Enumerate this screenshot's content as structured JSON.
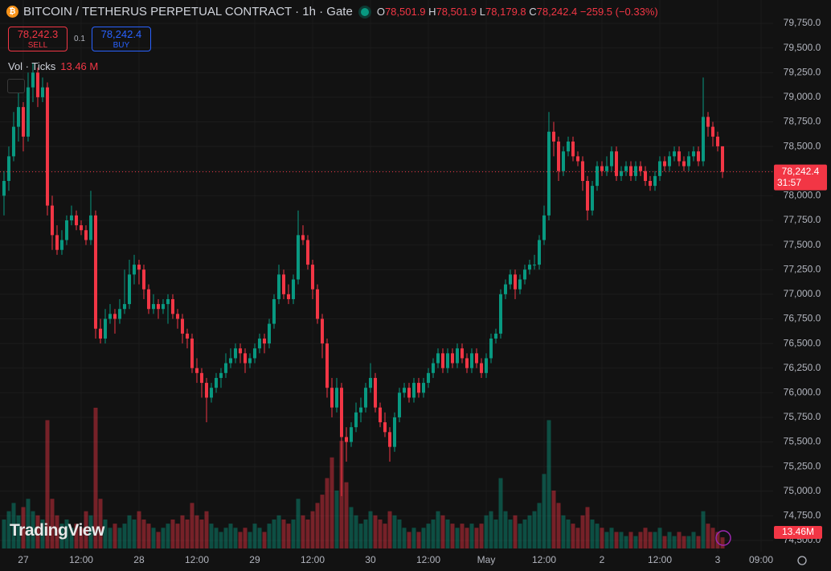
{
  "header": {
    "title": "BITCOIN / TETHERUS PERPETUAL CONTRACT · 1h · Gate",
    "ohlc": [
      {
        "key": "O",
        "text": "78,501.9"
      },
      {
        "key": "H",
        "text": "78,501.9"
      },
      {
        "key": "L",
        "text": "78,179.8"
      },
      {
        "key": "C",
        "text": "78,242.4"
      }
    ],
    "change": "−259.5 (−0.33%)",
    "sell_price": "78,242.3",
    "sell_label": "SELL",
    "quantity": "0.1",
    "buy_price": "78,242.4",
    "buy_label": "BUY",
    "volume_label": "Vol · Ticks",
    "volume_value": "13.46 M",
    "watermark": "TradingView"
  },
  "chart_data": {
    "type": "candlestick",
    "up_color": "#089981",
    "down_color": "#f23645",
    "ylim": [
      74386,
      79987
    ],
    "yticks": [
      {
        "value": 74500,
        "label": "74,500.0"
      },
      {
        "value": 74750,
        "label": "74,750.0"
      },
      {
        "value": 75000,
        "label": "75,000.0"
      },
      {
        "value": 75250,
        "label": "75,250.0"
      },
      {
        "value": 75500,
        "label": "75,500.0"
      },
      {
        "value": 75750,
        "label": "75,750.0"
      },
      {
        "value": 76000,
        "label": "76,000.0"
      },
      {
        "value": 76250,
        "label": "76,250.0"
      },
      {
        "value": 76500,
        "label": "76,500.0"
      },
      {
        "value": 76750,
        "label": "76,750.0"
      },
      {
        "value": 77000,
        "label": "77,000.0"
      },
      {
        "value": 77250,
        "label": "77,250.0"
      },
      {
        "value": 77500,
        "label": "77,500.0"
      },
      {
        "value": 77750,
        "label": "77,750.0"
      },
      {
        "value": 78000,
        "label": "78,000.0"
      },
      {
        "value": 78250,
        "label": "78,250.0"
      },
      {
        "value": 78500,
        "label": "78,500.0"
      },
      {
        "value": 78750,
        "label": "78,750.0"
      },
      {
        "value": 79000,
        "label": "79,000.0"
      },
      {
        "value": 79250,
        "label": "79,250.0"
      },
      {
        "value": 79500,
        "label": "79,500.0"
      },
      {
        "value": 79750,
        "label": "79,750.0"
      }
    ],
    "xlim": [
      -0.83,
      159.5
    ],
    "xticks": [
      {
        "value": 4,
        "label": "27"
      },
      {
        "value": 16,
        "label": "12:00"
      },
      {
        "value": 28,
        "label": "28"
      },
      {
        "value": 40,
        "label": "12:00"
      },
      {
        "value": 52,
        "label": "29"
      },
      {
        "value": 64,
        "label": "12:00"
      },
      {
        "value": 76,
        "label": "30"
      },
      {
        "value": 88,
        "label": "12:00"
      },
      {
        "value": 100,
        "label": "May"
      },
      {
        "value": 112,
        "label": "12:00"
      },
      {
        "value": 124,
        "label": "2"
      },
      {
        "value": 136,
        "label": "12:00"
      },
      {
        "value": 148,
        "label": "3"
      },
      {
        "value": 157,
        "label": "09:00"
      }
    ],
    "last_price": {
      "value": 78242.4,
      "label": "78,242.4",
      "countdown": "31:57"
    },
    "last_volume_label": "13.46M",
    "candle_fields": [
      "open",
      "high",
      "low",
      "close",
      "volume"
    ],
    "candles": [
      [
        78000,
        78250,
        77800,
        78150,
        35
      ],
      [
        78150,
        78500,
        78050,
        78400,
        45
      ],
      [
        78400,
        78850,
        78350,
        78700,
        55
      ],
      [
        78700,
        79050,
        78550,
        78900,
        40
      ],
      [
        78900,
        78950,
        78450,
        78600,
        50
      ],
      [
        78600,
        79250,
        78550,
        79100,
        60
      ],
      [
        79100,
        79350,
        78950,
        79250,
        45
      ],
      [
        79250,
        79300,
        78900,
        79000,
        40
      ],
      [
        79000,
        79200,
        78950,
        79100,
        35
      ],
      [
        79100,
        79150,
        77800,
        77900,
        155
      ],
      [
        77900,
        78000,
        77450,
        77600,
        60
      ],
      [
        77600,
        77700,
        77400,
        77450,
        40
      ],
      [
        77450,
        77650,
        77400,
        77550,
        30
      ],
      [
        77550,
        77800,
        77500,
        77750,
        35
      ],
      [
        77750,
        77900,
        77700,
        77800,
        25
      ],
      [
        77800,
        77850,
        77650,
        77700,
        30
      ],
      [
        77700,
        77750,
        77600,
        77650,
        25
      ],
      [
        77650,
        77700,
        77500,
        77550,
        45
      ],
      [
        77550,
        78050,
        77500,
        77800,
        40
      ],
      [
        77800,
        77850,
        76550,
        76650,
        170
      ],
      [
        76650,
        76750,
        76500,
        76550,
        60
      ],
      [
        76550,
        76850,
        76500,
        76750,
        35
      ],
      [
        76750,
        76900,
        76700,
        76800,
        25
      ],
      [
        76800,
        76850,
        76600,
        76750,
        30
      ],
      [
        76750,
        76950,
        76700,
        76850,
        25
      ],
      [
        76850,
        77250,
        76800,
        76900,
        30
      ],
      [
        76900,
        77350,
        76850,
        77200,
        40
      ],
      [
        77200,
        77400,
        77100,
        77300,
        35
      ],
      [
        77300,
        77350,
        77100,
        77250,
        45
      ],
      [
        77250,
        77300,
        76950,
        77050,
        35
      ],
      [
        77050,
        77100,
        76800,
        76850,
        30
      ],
      [
        76850,
        77000,
        76800,
        76900,
        25
      ],
      [
        76900,
        76950,
        76750,
        76850,
        20
      ],
      [
        76850,
        76950,
        76800,
        76900,
        25
      ],
      [
        76900,
        77000,
        76700,
        76950,
        30
      ],
      [
        76950,
        77000,
        76750,
        76800,
        35
      ],
      [
        76800,
        76850,
        76650,
        76750,
        30
      ],
      [
        76750,
        76800,
        76500,
        76600,
        40
      ],
      [
        76600,
        76650,
        76450,
        76550,
        35
      ],
      [
        76550,
        76600,
        76200,
        76250,
        55
      ],
      [
        76250,
        76350,
        76100,
        76200,
        40
      ],
      [
        76200,
        76250,
        75950,
        76100,
        35
      ],
      [
        76100,
        76150,
        75700,
        75950,
        45
      ],
      [
        75950,
        76100,
        75900,
        76050,
        30
      ],
      [
        76050,
        76200,
        76000,
        76150,
        25
      ],
      [
        76150,
        76250,
        76050,
        76200,
        20
      ],
      [
        76200,
        76400,
        76150,
        76300,
        25
      ],
      [
        76300,
        76450,
        76250,
        76350,
        30
      ],
      [
        76350,
        76500,
        76300,
        76450,
        25
      ],
      [
        76450,
        76500,
        76300,
        76400,
        20
      ],
      [
        76400,
        76450,
        76200,
        76300,
        25
      ],
      [
        76300,
        76400,
        76250,
        76350,
        20
      ],
      [
        76350,
        76500,
        76300,
        76450,
        30
      ],
      [
        76450,
        76600,
        76400,
        76550,
        25
      ],
      [
        76550,
        76600,
        76400,
        76500,
        20
      ],
      [
        76500,
        76750,
        76450,
        76700,
        30
      ],
      [
        76700,
        77000,
        76650,
        76950,
        35
      ],
      [
        76950,
        77300,
        76900,
        77200,
        40
      ],
      [
        77200,
        77250,
        76950,
        77000,
        35
      ],
      [
        77000,
        77100,
        76900,
        76950,
        30
      ],
      [
        76950,
        77200,
        76900,
        77150,
        35
      ],
      [
        77150,
        77850,
        77100,
        77600,
        60
      ],
      [
        77600,
        77700,
        77500,
        77550,
        40
      ],
      [
        77550,
        77600,
        77250,
        77300,
        35
      ],
      [
        77300,
        77350,
        76950,
        77050,
        45
      ],
      [
        77050,
        77100,
        76700,
        76750,
        55
      ],
      [
        76750,
        76800,
        76350,
        76500,
        65
      ],
      [
        76500,
        76550,
        75950,
        76050,
        85
      ],
      [
        76050,
        76150,
        75750,
        75850,
        110
      ],
      [
        75850,
        76150,
        75800,
        76050,
        70
      ],
      [
        76050,
        76100,
        74950,
        75550,
        130
      ],
      [
        75550,
        75650,
        75300,
        75500,
        80
      ],
      [
        75500,
        75700,
        75450,
        75650,
        50
      ],
      [
        75650,
        75900,
        75600,
        75800,
        40
      ],
      [
        75800,
        75950,
        75700,
        75850,
        30
      ],
      [
        75850,
        76100,
        75800,
        76050,
        35
      ],
      [
        76050,
        76300,
        76000,
        76150,
        45
      ],
      [
        76150,
        76200,
        75800,
        75850,
        40
      ],
      [
        75850,
        75900,
        75650,
        75700,
        35
      ],
      [
        75700,
        75800,
        75550,
        75600,
        30
      ],
      [
        75600,
        75650,
        75300,
        75450,
        45
      ],
      [
        75450,
        75800,
        75400,
        75750,
        40
      ],
      [
        75750,
        76050,
        75700,
        76000,
        35
      ],
      [
        76000,
        76100,
        75950,
        76050,
        25
      ],
      [
        76050,
        76100,
        75900,
        75950,
        20
      ],
      [
        75950,
        76150,
        75900,
        76100,
        25
      ],
      [
        76100,
        76150,
        75950,
        76000,
        20
      ],
      [
        76000,
        76150,
        75950,
        76100,
        25
      ],
      [
        76100,
        76250,
        76050,
        76200,
        30
      ],
      [
        76200,
        76350,
        76150,
        76300,
        35
      ],
      [
        76300,
        76450,
        76250,
        76400,
        45
      ],
      [
        76400,
        76450,
        76200,
        76250,
        40
      ],
      [
        76250,
        76450,
        76200,
        76400,
        35
      ],
      [
        76400,
        76450,
        76250,
        76300,
        30
      ],
      [
        76300,
        76500,
        76250,
        76450,
        25
      ],
      [
        76450,
        76500,
        76300,
        76350,
        30
      ],
      [
        76350,
        76400,
        76200,
        76250,
        25
      ],
      [
        76250,
        76450,
        76200,
        76400,
        30
      ],
      [
        76400,
        76450,
        76250,
        76300,
        25
      ],
      [
        76300,
        76350,
        76150,
        76200,
        30
      ],
      [
        76200,
        76400,
        76150,
        76350,
        40
      ],
      [
        76350,
        76600,
        76300,
        76550,
        45
      ],
      [
        76550,
        76650,
        76500,
        76600,
        35
      ],
      [
        76600,
        77050,
        76550,
        77000,
        85
      ],
      [
        77000,
        77150,
        76950,
        77100,
        45
      ],
      [
        77100,
        77250,
        77050,
        77200,
        35
      ],
      [
        77200,
        77250,
        76950,
        77050,
        40
      ],
      [
        77050,
        77200,
        77000,
        77150,
        30
      ],
      [
        77150,
        77300,
        77100,
        77250,
        35
      ],
      [
        77250,
        77350,
        77200,
        77300,
        40
      ],
      [
        77300,
        77400,
        77250,
        77300,
        45
      ],
      [
        77300,
        77600,
        77250,
        77550,
        55
      ],
      [
        77550,
        77900,
        77500,
        77800,
        90
      ],
      [
        77800,
        78850,
        77750,
        78650,
        155
      ],
      [
        78650,
        78750,
        78400,
        78550,
        70
      ],
      [
        78550,
        78600,
        78150,
        78250,
        55
      ],
      [
        78250,
        78500,
        78200,
        78450,
        40
      ],
      [
        78450,
        78600,
        78400,
        78550,
        35
      ],
      [
        78550,
        78600,
        78350,
        78400,
        30
      ],
      [
        78400,
        78450,
        78300,
        78350,
        25
      ],
      [
        78350,
        78400,
        78050,
        78150,
        40
      ],
      [
        78150,
        78200,
        77750,
        77850,
        50
      ],
      [
        77850,
        78150,
        77800,
        78100,
        35
      ],
      [
        78100,
        78350,
        78050,
        78300,
        30
      ],
      [
        78300,
        78350,
        78200,
        78250,
        25
      ],
      [
        78250,
        78400,
        78200,
        78300,
        20
      ],
      [
        78300,
        78500,
        78250,
        78450,
        25
      ],
      [
        78450,
        78500,
        78150,
        78200,
        20
      ],
      [
        78200,
        78300,
        78150,
        78250,
        20
      ],
      [
        78250,
        78350,
        78200,
        78300,
        15
      ],
      [
        78300,
        78350,
        78150,
        78200,
        20
      ],
      [
        78200,
        78350,
        78150,
        78300,
        15
      ],
      [
        78300,
        78350,
        78200,
        78250,
        20
      ],
      [
        78250,
        78300,
        78100,
        78150,
        25
      ],
      [
        78150,
        78200,
        78050,
        78100,
        20
      ],
      [
        78100,
        78250,
        78050,
        78200,
        20
      ],
      [
        78200,
        78400,
        78150,
        78350,
        25
      ],
      [
        78350,
        78400,
        78250,
        78300,
        15
      ],
      [
        78300,
        78450,
        78250,
        78400,
        20
      ],
      [
        78400,
        78500,
        78350,
        78450,
        15
      ],
      [
        78450,
        78500,
        78300,
        78350,
        20
      ],
      [
        78350,
        78400,
        78250,
        78300,
        15
      ],
      [
        78300,
        78450,
        78250,
        78400,
        15
      ],
      [
        78400,
        78500,
        78350,
        78450,
        20
      ],
      [
        78450,
        78500,
        78300,
        78350,
        15
      ],
      [
        78350,
        79200,
        78300,
        78800,
        45
      ],
      [
        78800,
        78850,
        78600,
        78700,
        30
      ],
      [
        78700,
        78750,
        78500,
        78600,
        25
      ],
      [
        78600,
        78650,
        78450,
        78501.9,
        20
      ],
      [
        78501.9,
        78501.9,
        78179.8,
        78242.4,
        13.46
      ]
    ]
  }
}
